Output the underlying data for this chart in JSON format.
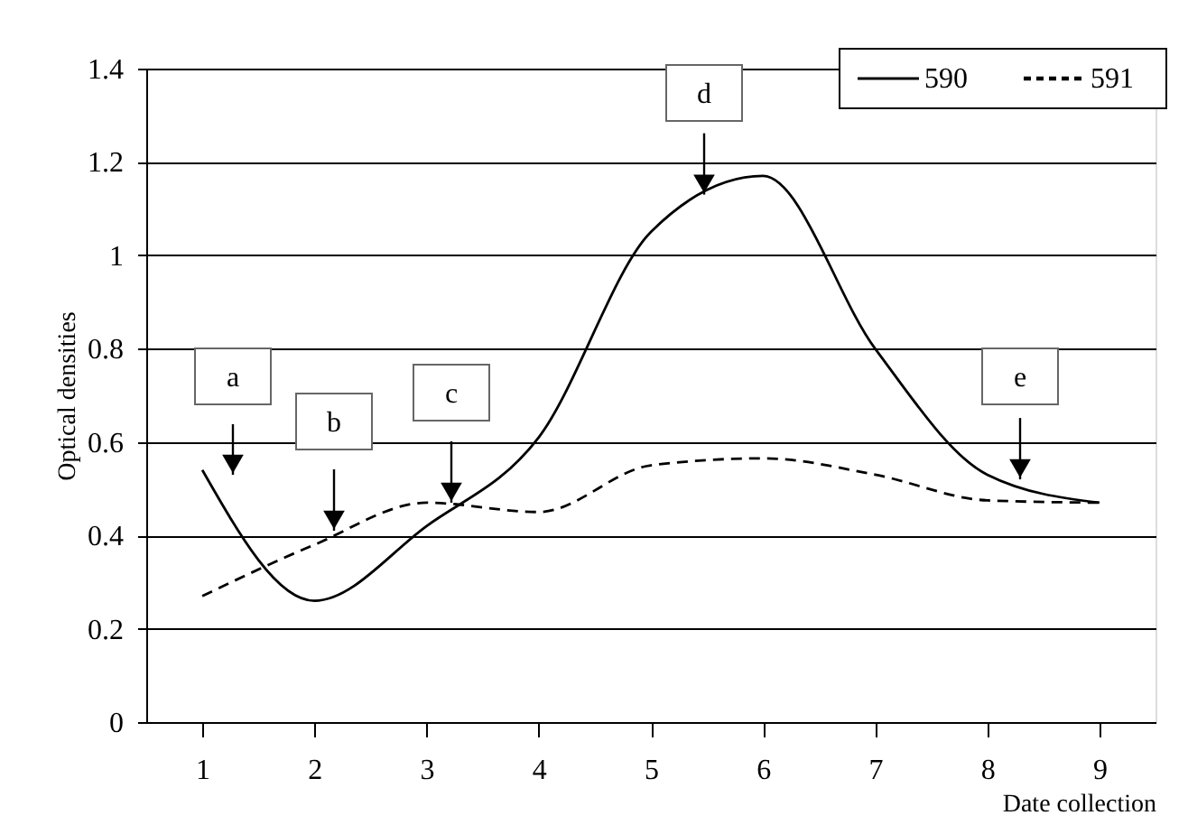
{
  "chart_data": {
    "type": "line",
    "xlabel": "Date collection",
    "ylabel": "Optical densities",
    "categories": [
      "1",
      "2",
      "3",
      "4",
      "5",
      "6",
      "7",
      "8",
      "9"
    ],
    "series": [
      {
        "name": "590",
        "color": "#000000",
        "line_style": "solid",
        "values": [
          0.54,
          0.26,
          0.42,
          0.61,
          1.05,
          1.17,
          0.8,
          0.53,
          0.47
        ]
      },
      {
        "name": "591",
        "color": "#000000",
        "line_style": "dashed",
        "values": [
          0.27,
          0.38,
          0.47,
          0.45,
          0.55,
          0.565,
          0.53,
          0.475,
          0.47
        ]
      }
    ],
    "ylim": [
      0,
      1.4
    ],
    "yticks": [
      0,
      0.2,
      0.4,
      0.6,
      0.8,
      1,
      1.2,
      1.4
    ],
    "grid": "y",
    "legend": "top right",
    "marker": "none",
    "annotations": [
      "a",
      {
        "text": "b",
        "y": 0.41
      },
      {
        "text": "c",
        "y": 0.47
      },
      {
        "text": "d",
        "y": 1.13
      },
      {
        "text": "e",
        "y": 0.52
      }
    ]
  }
}
